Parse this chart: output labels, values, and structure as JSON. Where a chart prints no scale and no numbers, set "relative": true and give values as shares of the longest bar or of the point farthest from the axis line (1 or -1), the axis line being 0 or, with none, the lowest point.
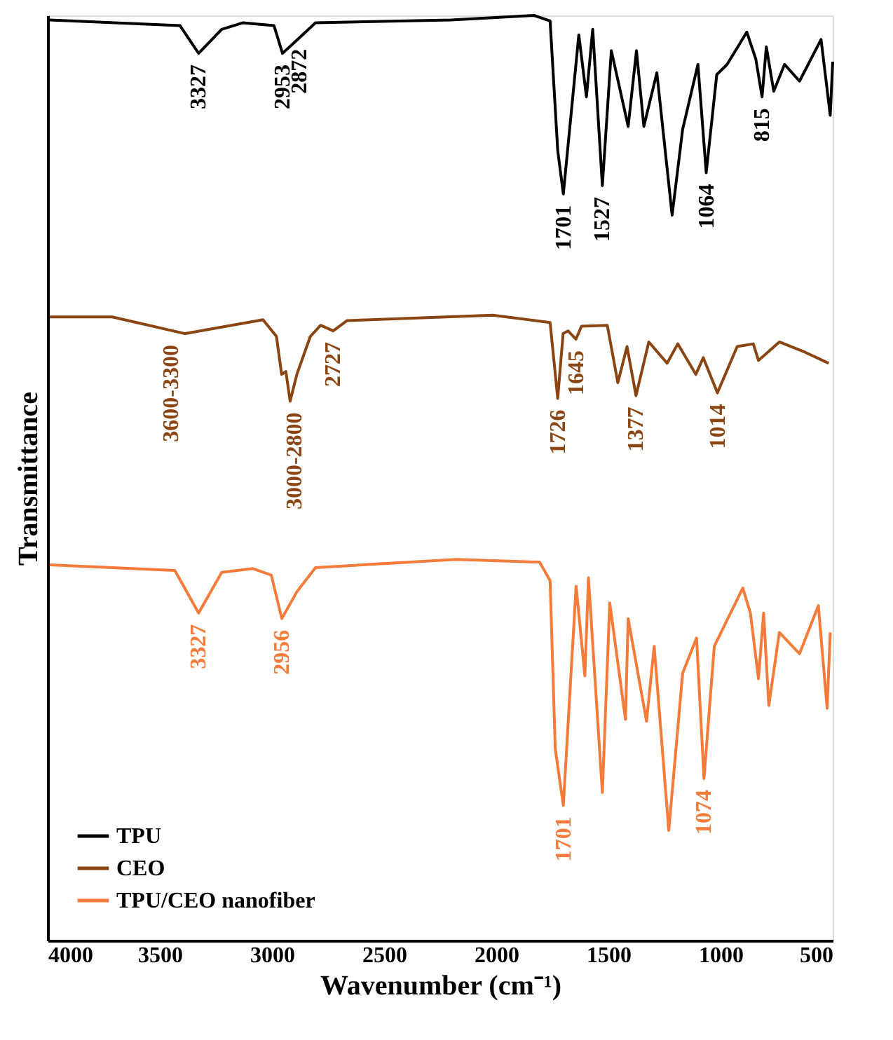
{
  "chart_data": {
    "type": "line",
    "relative": true,
    "xlabel": "Wavenumber (cm⁻¹)",
    "ylabel": "Transmittance",
    "xlim": [
      4000,
      500
    ],
    "xticks": [
      4000,
      3500,
      3000,
      2500,
      2000,
      1500,
      1000,
      500
    ],
    "legend": "bottom left",
    "grid": false,
    "marker": "none",
    "line_style": "solid",
    "series": [
      {
        "name": "TPU",
        "color": "#000000",
        "x": [
          3991,
          3410,
          3327,
          3224,
          3131,
          2991,
          2953,
          2877,
          2806,
          2202,
          1832,
          1760,
          1726,
          1701,
          1632,
          1598,
          1570,
          1527,
          1487,
          1412,
          1375,
          1342,
          1284,
          1216,
          1169,
          1101,
          1064,
          1017,
          971,
          883,
          843,
          815,
          796,
          763,
          715,
          648,
          552,
          511,
          500
        ],
        "values": [
          0.995,
          0.989,
          0.959,
          0.985,
          0.992,
          0.989,
          0.959,
          0.976,
          0.992,
          0.995,
          1.0,
          0.994,
          0.854,
          0.807,
          0.979,
          0.912,
          0.985,
          0.816,
          0.962,
          0.88,
          0.962,
          0.88,
          0.938,
          0.784,
          0.877,
          0.947,
          0.83,
          0.936,
          0.947,
          0.982,
          0.953,
          0.912,
          0.966,
          0.918,
          0.947,
          0.929,
          0.974,
          0.892,
          0.95
        ]
      },
      {
        "name": "CEO",
        "color": "#8b4513",
        "x": [
          3991,
          3712,
          3387,
          3040,
          2980,
          2957,
          2938,
          2919,
          2889,
          2829,
          2783,
          2727,
          2666,
          2016,
          1760,
          1726,
          1702,
          1680,
          1645,
          1620,
          1505,
          1458,
          1417,
          1377,
          1320,
          1238,
          1191,
          1110,
          1077,
          1014,
          926,
          854,
          831,
          738,
          624,
          518
        ],
        "values": [
          0.674,
          0.674,
          0.656,
          0.671,
          0.653,
          0.612,
          0.615,
          0.583,
          0.612,
          0.653,
          0.665,
          0.659,
          0.67,
          0.676,
          0.668,
          0.586,
          0.656,
          0.659,
          0.65,
          0.664,
          0.665,
          0.603,
          0.642,
          0.589,
          0.647,
          0.624,
          0.645,
          0.612,
          0.63,
          0.592,
          0.642,
          0.645,
          0.627,
          0.647,
          0.636,
          0.624
        ]
      },
      {
        "name": "TPU/CEO nanofiber",
        "color": "#f47b3a",
        "x": [
          3991,
          3433,
          3327,
          3224,
          3085,
          3003,
          2956,
          2889,
          2806,
          2179,
          1807,
          1760,
          1737,
          1701,
          1644,
          1605,
          1589,
          1527,
          1494,
          1424,
          1412,
          1330,
          1296,
          1231,
          1169,
          1107,
          1074,
          1028,
          901,
          867,
          831,
          808,
          785,
          738,
          648,
          564,
          525,
          511
        ],
        "values": [
          0.406,
          0.4,
          0.354,
          0.398,
          0.402,
          0.395,
          0.348,
          0.377,
          0.403,
          0.412,
          0.409,
          0.389,
          0.207,
          0.146,
          0.383,
          0.286,
          0.392,
          0.16,
          0.365,
          0.239,
          0.348,
          0.237,
          0.318,
          0.119,
          0.289,
          0.327,
          0.175,
          0.318,
          0.381,
          0.354,
          0.283,
          0.354,
          0.254,
          0.333,
          0.31,
          0.362,
          0.251,
          0.333
        ]
      }
    ],
    "annotations": [
      {
        "text": "3327",
        "x": 3327,
        "y": 0.959
      },
      {
        "text": "2953",
        "x": 2953,
        "y": 0.959
      },
      {
        "text": "2872",
        "x": 2877,
        "y": 0.976
      },
      {
        "text": "1701",
        "x": 1701,
        "y": 0.807
      },
      {
        "text": "1527",
        "x": 1527,
        "y": 0.816
      },
      {
        "text": "1064",
        "x": 1064,
        "y": 0.83
      },
      {
        "text": "815",
        "x": 815,
        "y": 0.912
      },
      {
        "text": "3600-3300",
        "x": 3450,
        "y": 0.656
      },
      {
        "text": "3000-2800",
        "x": 2900,
        "y": 0.583
      },
      {
        "text": "2727",
        "x": 2727,
        "y": 0.659
      },
      {
        "text": "1726",
        "x": 1726,
        "y": 0.586
      },
      {
        "text": "1645",
        "x": 1645,
        "y": 0.65
      },
      {
        "text": "1377",
        "x": 1377,
        "y": 0.589
      },
      {
        "text": "1014",
        "x": 1014,
        "y": 0.592
      },
      {
        "text": "3327",
        "x": 3327,
        "y": 0.354
      },
      {
        "text": "2956",
        "x": 2956,
        "y": 0.348
      },
      {
        "text": "1701",
        "x": 1701,
        "y": 0.146
      },
      {
        "text": "1074",
        "x": 1074,
        "y": 0.175
      }
    ]
  }
}
